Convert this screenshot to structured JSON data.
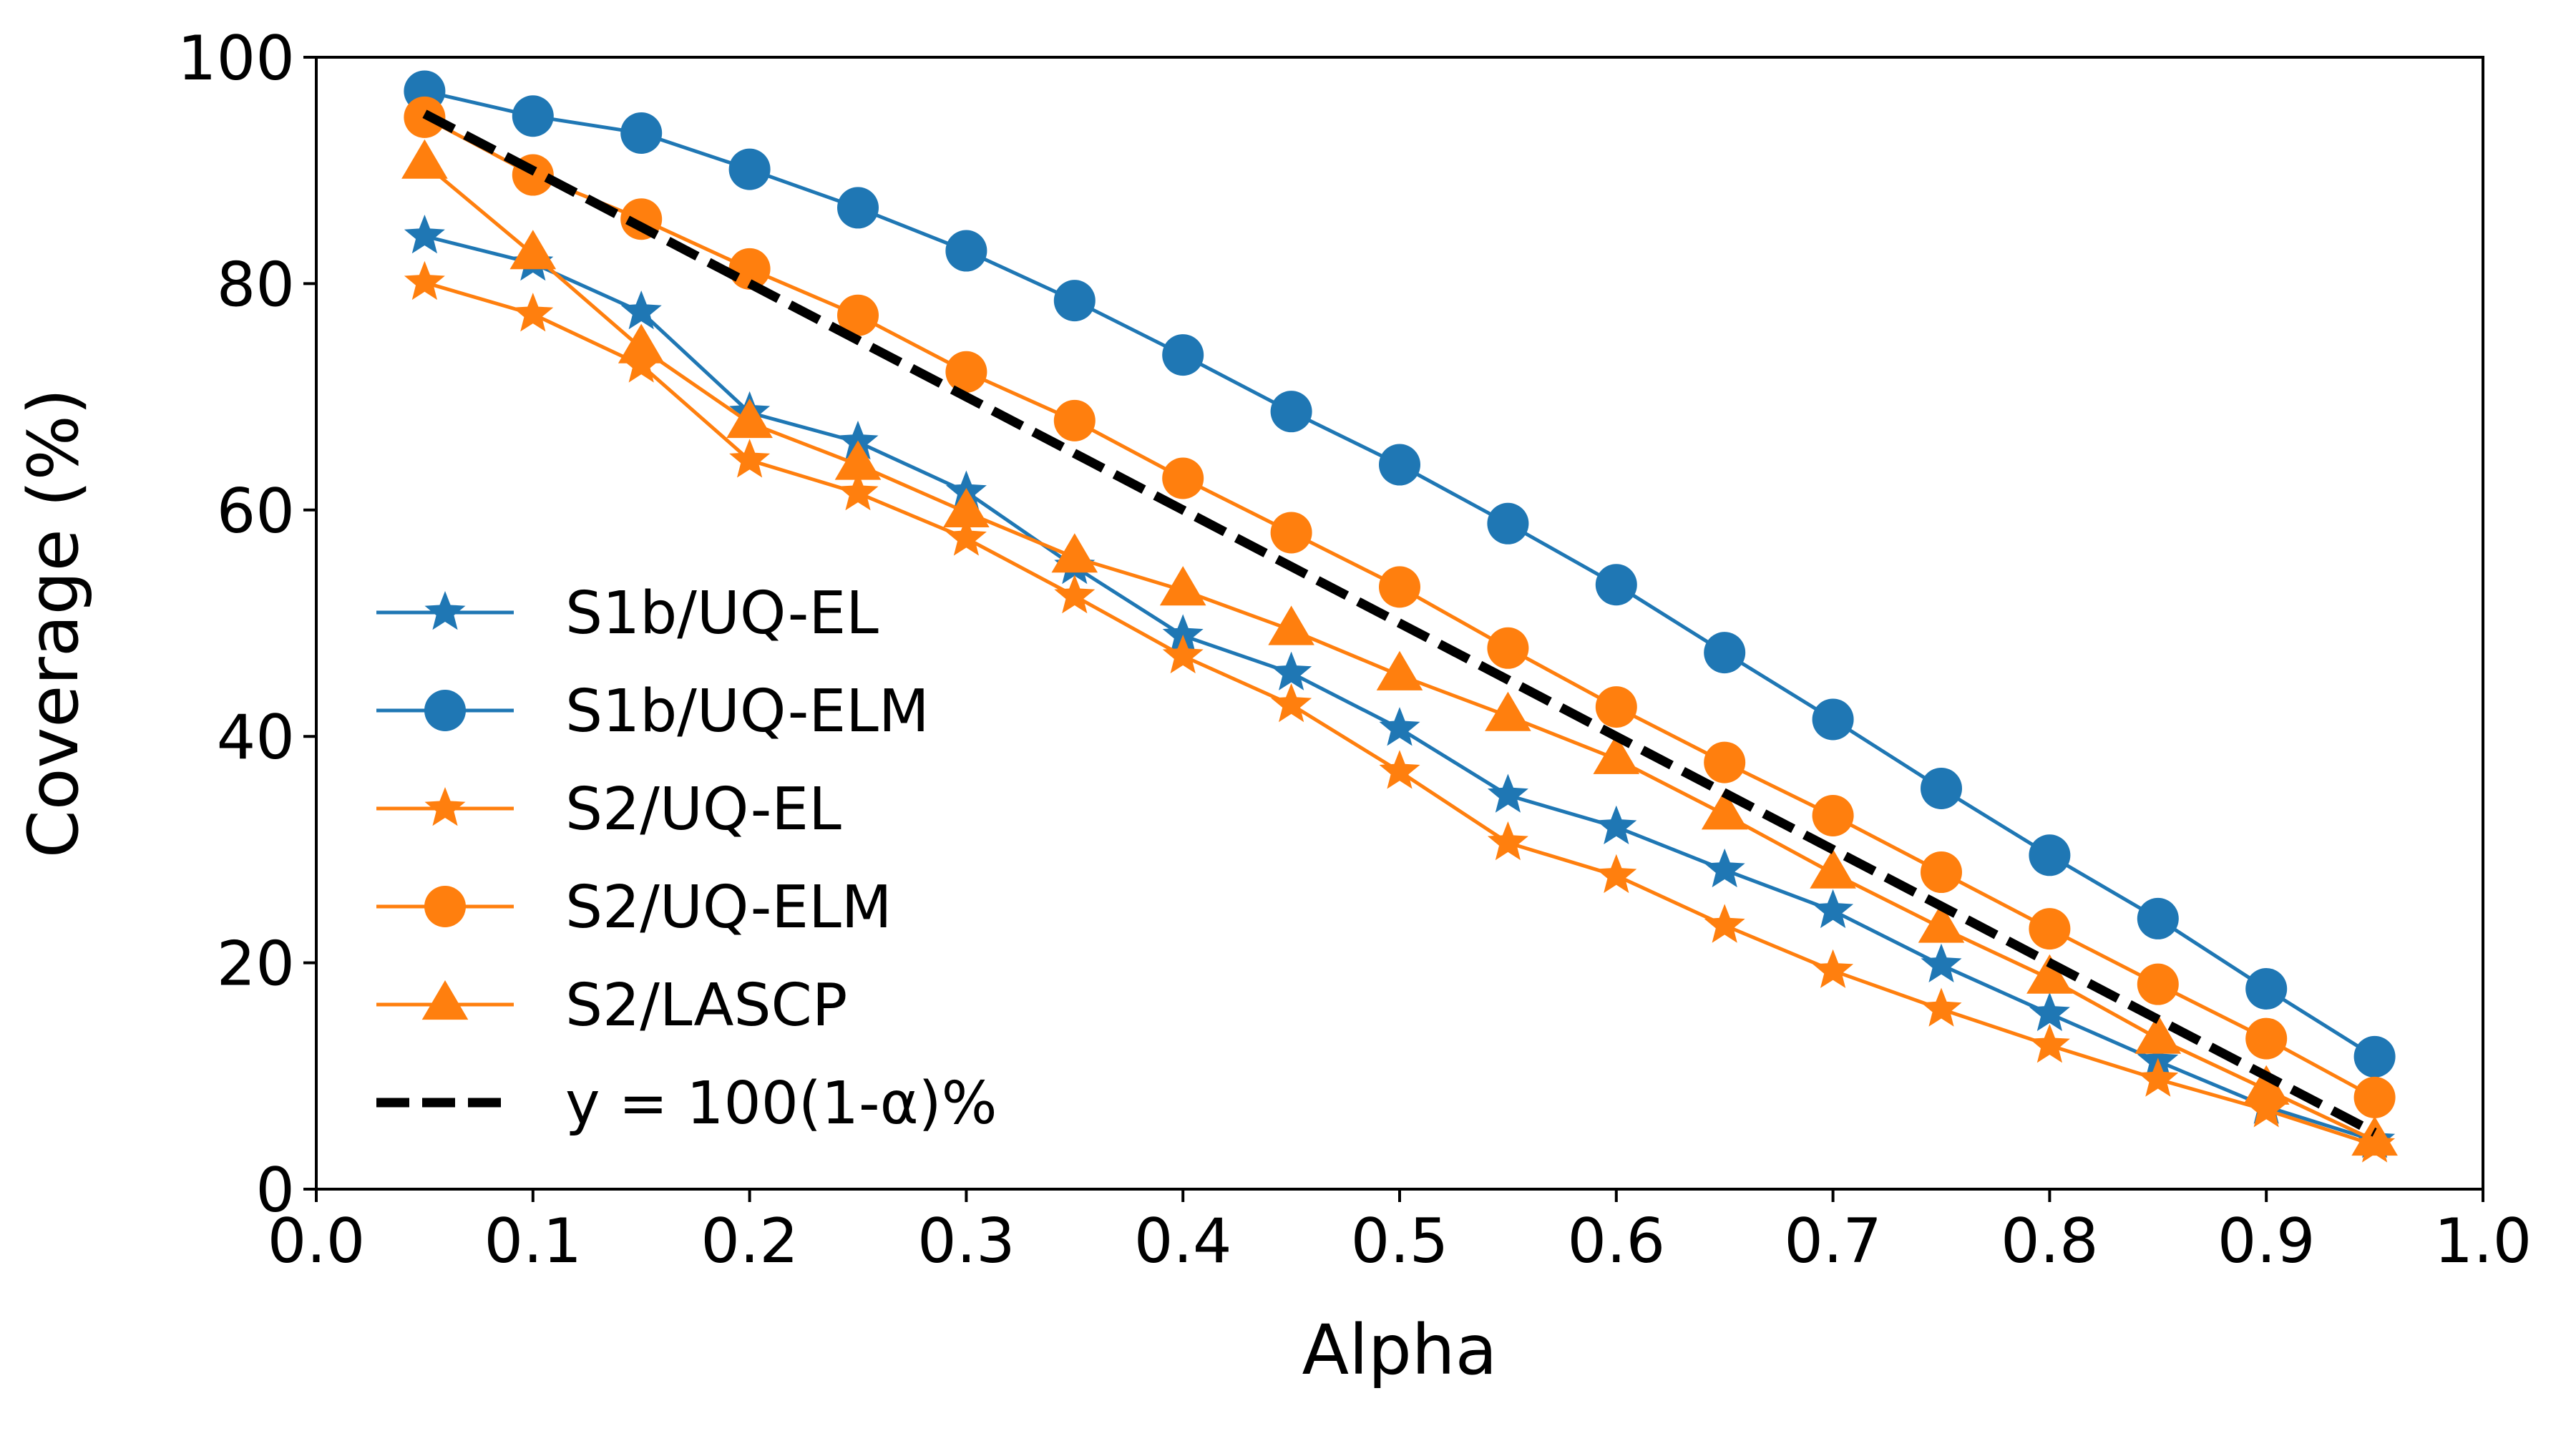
{
  "chart_data": {
    "type": "line",
    "xlabel": "Alpha",
    "ylabel": "Coverage (%)",
    "xlim": [
      0.0,
      1.0
    ],
    "ylim": [
      0,
      100
    ],
    "xticks": [
      "0.0",
      "0.1",
      "0.2",
      "0.3",
      "0.4",
      "0.5",
      "0.6",
      "0.7",
      "0.8",
      "0.9",
      "1.0"
    ],
    "yticks": [
      "0",
      "20",
      "40",
      "60",
      "80",
      "100"
    ],
    "grid": false,
    "legend_position": "lower-left",
    "x": [
      0.05,
      0.1,
      0.15,
      0.2,
      0.25,
      0.3,
      0.35,
      0.4,
      0.45,
      0.5,
      0.55,
      0.6,
      0.65,
      0.7,
      0.75,
      0.8,
      0.85,
      0.9,
      0.95
    ],
    "series": [
      {
        "name": "S1b/UQ-EL",
        "color": "#1f77b4",
        "marker": "star",
        "values": [
          84.2,
          81.8,
          77.5,
          68.6,
          66.0,
          61.6,
          55.0,
          48.9,
          45.6,
          40.7,
          34.8,
          32.0,
          28.2,
          24.6,
          19.8,
          15.5,
          11.3,
          7.3,
          4.3
        ]
      },
      {
        "name": "S1b/UQ-ELM",
        "color": "#1f77b4",
        "marker": "circle",
        "values": [
          97.0,
          94.8,
          93.3,
          90.1,
          86.7,
          82.9,
          78.5,
          73.7,
          68.7,
          64.0,
          58.8,
          53.4,
          47.4,
          41.5,
          35.4,
          29.5,
          23.9,
          17.7,
          11.7
        ]
      },
      {
        "name": "S2/UQ-EL",
        "color": "#ff7f0e",
        "marker": "star",
        "values": [
          80.1,
          77.3,
          72.8,
          64.4,
          61.5,
          57.5,
          52.4,
          47.1,
          42.8,
          36.9,
          30.6,
          27.7,
          23.3,
          19.3,
          15.9,
          12.7,
          9.7,
          7.0,
          3.9
        ]
      },
      {
        "name": "S2/UQ-ELM",
        "color": "#ff7f0e",
        "marker": "circle",
        "values": [
          94.7,
          89.6,
          85.7,
          81.3,
          77.2,
          72.2,
          67.9,
          62.8,
          58.0,
          53.2,
          47.8,
          42.6,
          37.7,
          33.0,
          28.0,
          23.0,
          18.1,
          13.3,
          8.1
        ]
      },
      {
        "name": "S2/LASCP",
        "color": "#ff7f0e",
        "marker": "triangle",
        "values": [
          90.6,
          82.6,
          74.3,
          67.7,
          64.0,
          59.8,
          55.8,
          52.9,
          49.4,
          45.4,
          41.8,
          38.0,
          33.1,
          27.9,
          23.1,
          18.6,
          13.3,
          8.8,
          4.3
        ]
      },
      {
        "name": "y = 100(1-α)%",
        "color": "#000000",
        "marker": "none",
        "dashed": true,
        "values": [
          95,
          90,
          85,
          80,
          75,
          70,
          65,
          60,
          55,
          50,
          45,
          40,
          35,
          30,
          25,
          20,
          15,
          10,
          5
        ]
      }
    ]
  }
}
